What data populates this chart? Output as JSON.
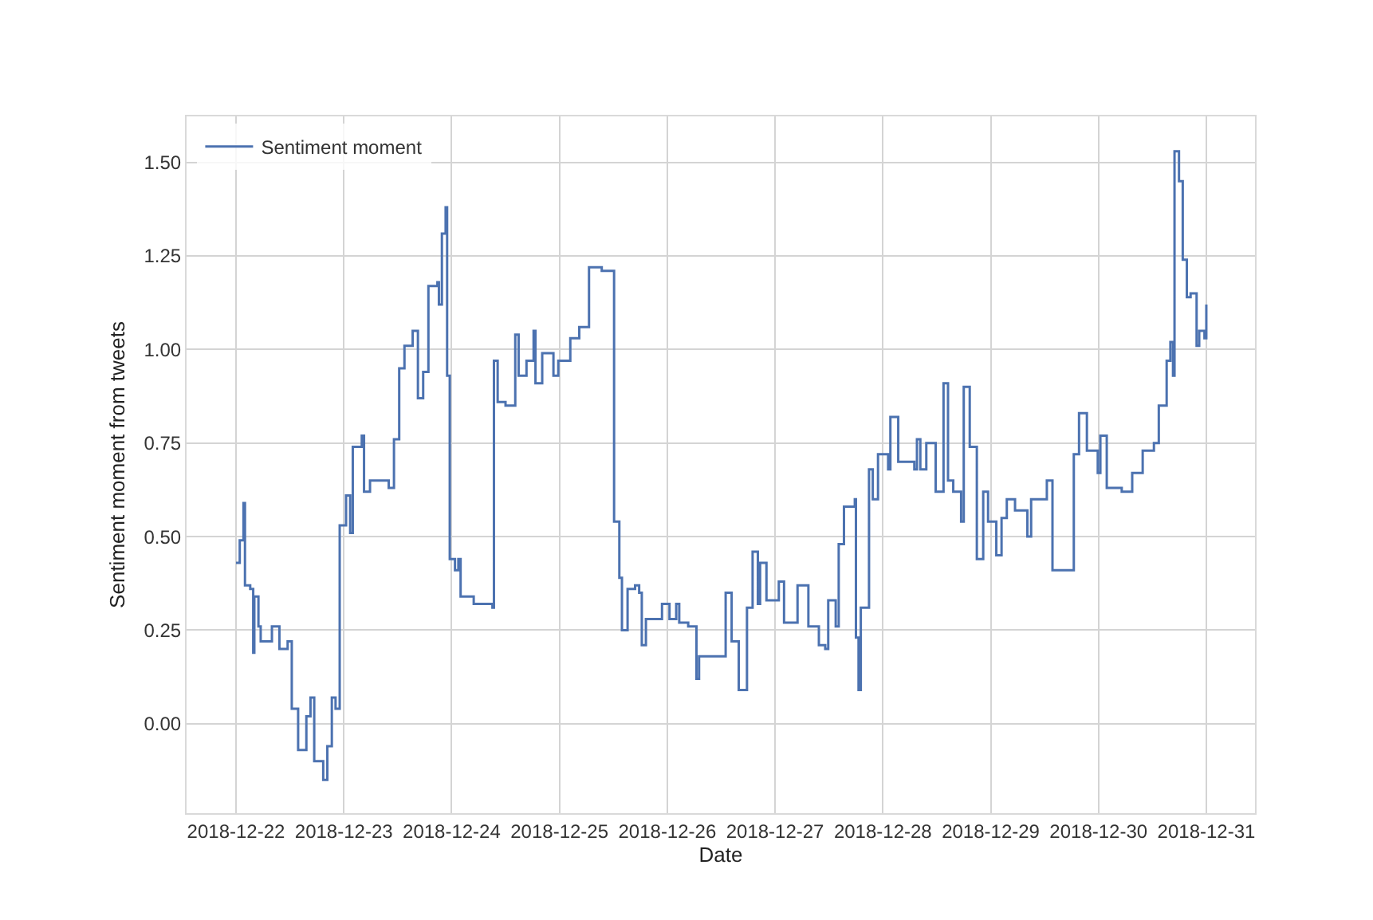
{
  "chart_data": {
    "type": "step",
    "xlabel": "Date",
    "ylabel": "Sentiment moment from tweets",
    "xlim": [
      "2018-12-21T13:00",
      "2018-12-31T10:50"
    ],
    "ylim": [
      -0.239,
      1.623
    ],
    "xticks": [
      "2018-12-22",
      "2018-12-23",
      "2018-12-24",
      "2018-12-25",
      "2018-12-26",
      "2018-12-27",
      "2018-12-28",
      "2018-12-29",
      "2018-12-30",
      "2018-12-31"
    ],
    "yticks": [
      {
        "value": 0,
        "label": "0.00"
      },
      {
        "value": 0.25,
        "label": "0.25"
      },
      {
        "value": 0.5,
        "label": "0.50"
      },
      {
        "value": 0.75,
        "label": "0.75"
      },
      {
        "value": 1,
        "label": "1.00"
      },
      {
        "value": 1.25,
        "label": "1.25"
      },
      {
        "value": 1.5,
        "label": "1.50"
      }
    ],
    "grid": true,
    "legend": "top left",
    "marker": "none",
    "line_style": "solid",
    "series": [
      {
        "name": "Sentiment moment",
        "color": "#4c72b0",
        "x": [
          "2018-12-22T00:00",
          "2018-12-22T00:50",
          "2018-12-22T01:40",
          "2018-12-22T02:00",
          "2018-12-22T03:10",
          "2018-12-22T03:50",
          "2018-12-22T04:05",
          "2018-12-22T05:00",
          "2018-12-22T05:30",
          "2018-12-22T08:00",
          "2018-12-22T09:40",
          "2018-12-22T11:30",
          "2018-12-22T12:25",
          "2018-12-22T13:50",
          "2018-12-22T15:40",
          "2018-12-22T16:35",
          "2018-12-22T17:25",
          "2018-12-22T19:25",
          "2018-12-22T20:20",
          "2018-12-22T21:20",
          "2018-12-22T22:10",
          "2018-12-22T23:05",
          "2018-12-23T00:30",
          "2018-12-23T01:25",
          "2018-12-23T02:00",
          "2018-12-23T04:00",
          "2018-12-23T04:30",
          "2018-12-23T05:50",
          "2018-12-23T10:00",
          "2018-12-23T11:10",
          "2018-12-23T12:20",
          "2018-12-23T13:30",
          "2018-12-23T15:20",
          "2018-12-23T16:30",
          "2018-12-23T17:40",
          "2018-12-23T18:50",
          "2018-12-23T20:50",
          "2018-12-23T21:10",
          "2018-12-23T21:50",
          "2018-12-23T22:40",
          "2018-12-23T23:00",
          "2018-12-23T23:35",
          "2018-12-24T00:45",
          "2018-12-24T01:30",
          "2018-12-24T02:00",
          "2018-12-24T04:55",
          "2018-12-24T09:05",
          "2018-12-24T09:25",
          "2018-12-24T10:15",
          "2018-12-24T12:00",
          "2018-12-24T14:10",
          "2018-12-24T14:55",
          "2018-12-24T16:40",
          "2018-12-24T18:15",
          "2018-12-24T18:40",
          "2018-12-24T20:10",
          "2018-12-24T22:40",
          "2018-12-24T23:45",
          "2018-12-25T02:05",
          "2018-12-25T02:25",
          "2018-12-25T04:25",
          "2018-12-25T06:35",
          "2018-12-25T09:25",
          "2018-12-25T12:10",
          "2018-12-25T13:20",
          "2018-12-25T13:55",
          "2018-12-25T15:10",
          "2018-12-25T16:50",
          "2018-12-25T17:45",
          "2018-12-25T18:20",
          "2018-12-25T19:15",
          "2018-12-25T22:50",
          "2018-12-26T00:30",
          "2018-12-26T02:00",
          "2018-12-26T02:40",
          "2018-12-26T04:40",
          "2018-12-26T06:30",
          "2018-12-26T07:05",
          "2018-12-26T12:25",
          "2018-12-26T13:00",
          "2018-12-26T14:20",
          "2018-12-26T15:55",
          "2018-12-26T17:45",
          "2018-12-26T19:00",
          "2018-12-26T20:10",
          "2018-12-26T20:40",
          "2018-12-26T22:05",
          "2018-12-27T00:50",
          "2018-12-27T02:00",
          "2018-12-27T05:00",
          "2018-12-27T07:25",
          "2018-12-27T09:45",
          "2018-12-27T11:10",
          "2018-12-27T11:50",
          "2018-12-27T13:30",
          "2018-12-27T14:10",
          "2018-12-27T15:20",
          "2018-12-27T17:45",
          "2018-12-27T18:00",
          "2018-12-27T18:35",
          "2018-12-27T19:05",
          "2018-12-27T20:55",
          "2018-12-27T21:45",
          "2018-12-27T22:55",
          "2018-12-28T01:10",
          "2018-12-28T01:40",
          "2018-12-28T03:25",
          "2018-12-28T07:00",
          "2018-12-28T07:35",
          "2018-12-28T08:20",
          "2018-12-28T09:40",
          "2018-12-28T11:45",
          "2018-12-28T13:30",
          "2018-12-28T14:30",
          "2018-12-28T15:40",
          "2018-12-28T17:25",
          "2018-12-28T18:00",
          "2018-12-28T19:20",
          "2018-12-28T20:55",
          "2018-12-28T22:20",
          "2018-12-28T23:25",
          "2018-12-29T01:15",
          "2018-12-29T02:25",
          "2018-12-29T03:35",
          "2018-12-29T05:25",
          "2018-12-29T08:10",
          "2018-12-29T09:00",
          "2018-12-29T12:30",
          "2018-12-29T13:45",
          "2018-12-29T18:30",
          "2018-12-29T19:40",
          "2018-12-29T21:25",
          "2018-12-29T23:50",
          "2018-12-30T00:25",
          "2018-12-30T01:50",
          "2018-12-30T05:10",
          "2018-12-30T07:30",
          "2018-12-30T09:50",
          "2018-12-30T12:20",
          "2018-12-30T13:25",
          "2018-12-30T15:10",
          "2018-12-30T16:00",
          "2018-12-30T16:35",
          "2018-12-30T16:55",
          "2018-12-30T17:55",
          "2018-12-30T18:45",
          "2018-12-30T19:40",
          "2018-12-30T20:30",
          "2018-12-30T21:50",
          "2018-12-30T22:25",
          "2018-12-30T23:35",
          "2018-12-31T00:00"
        ],
        "values": [
          0.43,
          0.49,
          0.59,
          0.37,
          0.36,
          0.19,
          0.34,
          0.26,
          0.22,
          0.26,
          0.2,
          0.22,
          0.04,
          -0.07,
          0.02,
          0.07,
          -0.1,
          -0.15,
          -0.06,
          0.07,
          0.04,
          0.53,
          0.61,
          0.51,
          0.74,
          0.77,
          0.62,
          0.65,
          0.63,
          0.76,
          0.95,
          1.01,
          1.05,
          0.87,
          0.94,
          1.17,
          1.18,
          1.12,
          1.31,
          1.38,
          0.93,
          0.44,
          0.41,
          0.44,
          0.34,
          0.32,
          0.31,
          0.97,
          0.86,
          0.85,
          1.04,
          0.93,
          0.97,
          1.05,
          0.91,
          0.99,
          0.93,
          0.97,
          0.97,
          1.03,
          1.06,
          1.22,
          1.21,
          0.54,
          0.39,
          0.25,
          0.36,
          0.37,
          0.35,
          0.21,
          0.28,
          0.32,
          0.28,
          0.32,
          0.27,
          0.26,
          0.12,
          0.18,
          0.18,
          0.35,
          0.22,
          0.09,
          0.31,
          0.46,
          0.32,
          0.43,
          0.33,
          0.38,
          0.27,
          0.37,
          0.26,
          0.21,
          0.2,
          0.33,
          0.26,
          0.48,
          0.58,
          0.6,
          0.23,
          0.09,
          0.31,
          0.68,
          0.6,
          0.72,
          0.68,
          0.82,
          0.7,
          0.68,
          0.76,
          0.68,
          0.75,
          0.62,
          0.91,
          0.65,
          0.62,
          0.54,
          0.9,
          0.74,
          0.44,
          0.62,
          0.54,
          0.45,
          0.55,
          0.6,
          0.57,
          0.5,
          0.6,
          0.65,
          0.41,
          0.72,
          0.83,
          0.73,
          0.67,
          0.77,
          0.63,
          0.62,
          0.67,
          0.73,
          0.75,
          0.85,
          0.97,
          1.02,
          0.93,
          1.53,
          1.45,
          1.24,
          1.14,
          1.15,
          1.01,
          1.05,
          1.03,
          1.12
        ]
      }
    ]
  }
}
